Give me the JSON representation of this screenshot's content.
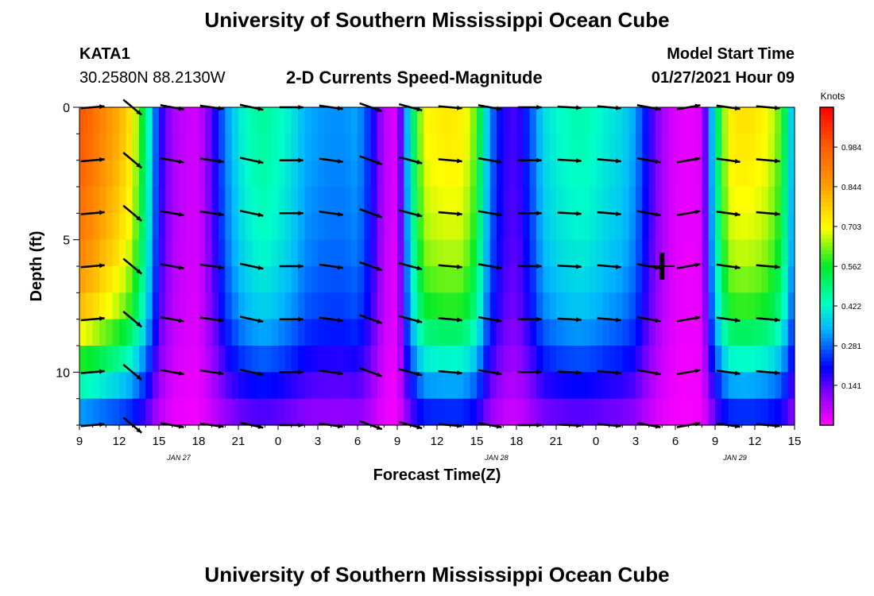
{
  "header": {
    "title": "University of Southern Mississippi Ocean Cube",
    "station_id": "KATA1",
    "station_coords": "30.2580N 88.2130W",
    "chart_title": "2-D Currents Speed-Magnitude",
    "model_label": "Model Start Time",
    "model_time": "01/27/2021 Hour 09"
  },
  "footer": {
    "title": "University of Southern Mississippi Ocean Cube"
  },
  "chart_data": {
    "type": "heatmap",
    "title": "2-D Currents Speed-Magnitude",
    "xlabel": "Forecast Time(Z)",
    "ylabel": "Depth (ft)",
    "x_tick_labels": [
      "9",
      "12",
      "15",
      "18",
      "21",
      "0",
      "3",
      "6",
      "9",
      "12",
      "15",
      "18",
      "21",
      "0",
      "3",
      "6",
      "9",
      "12",
      "15"
    ],
    "date_labels": [
      {
        "text": "JAN 27",
        "tick_index": 2.5
      },
      {
        "text": "JAN 28",
        "tick_index": 10.5
      },
      {
        "text": "JAN 29",
        "tick_index": 16.5
      }
    ],
    "y_range": [
      0,
      12
    ],
    "y_ticks": [
      0,
      5,
      10
    ],
    "colorbar": {
      "unit": "Knots",
      "range": [
        0.0,
        1.125
      ],
      "ticks": [
        0.141,
        0.281,
        0.422,
        0.562,
        0.703,
        0.844,
        0.984
      ]
    },
    "speed_profile_hours": [
      0,
      1,
      2,
      3,
      4,
      5,
      6,
      7,
      8,
      9,
      10,
      11,
      12,
      13,
      14,
      15,
      16,
      17,
      18,
      19,
      20,
      21,
      22,
      23,
      24,
      25,
      26,
      27,
      28,
      29,
      30,
      31,
      32,
      33,
      34,
      35,
      36,
      37,
      38,
      39,
      40,
      41,
      42,
      43,
      44,
      45,
      46,
      47,
      48,
      49,
      50,
      51,
      52,
      53,
      54
    ],
    "speed_profile_knots": [
      1.0,
      0.95,
      0.88,
      0.82,
      0.72,
      0.5,
      0.2,
      0.08,
      0.05,
      0.04,
      0.15,
      0.3,
      0.4,
      0.45,
      0.47,
      0.44,
      0.4,
      0.34,
      0.32,
      0.31,
      0.31,
      0.33,
      0.22,
      0.06,
      0.03,
      0.45,
      0.7,
      0.72,
      0.73,
      0.72,
      0.6,
      0.3,
      0.18,
      0.15,
      0.25,
      0.38,
      0.42,
      0.44,
      0.45,
      0.43,
      0.4,
      0.38,
      0.32,
      0.18,
      0.08,
      0.03,
      0.02,
      0.03,
      0.45,
      0.72,
      0.74,
      0.73,
      0.7,
      0.6,
      0.3
    ],
    "depth_ft": [
      0,
      1,
      2,
      3,
      4,
      5,
      6,
      7,
      8,
      9,
      10,
      11,
      12
    ],
    "depth_factor": [
      1.0,
      1.0,
      0.99,
      0.97,
      0.95,
      0.93,
      0.9,
      0.85,
      0.8,
      0.7,
      0.58,
      0.45,
      0.32
    ],
    "arrow_depths_ft": [
      0,
      2,
      4,
      6,
      8,
      10,
      12
    ],
    "arrow_hours": [
      1,
      4,
      7,
      10,
      13,
      16,
      19,
      22,
      25,
      28,
      31,
      34,
      37,
      40,
      43,
      46,
      49,
      52
    ],
    "arrow_angles_deg": [
      5,
      -40,
      -10,
      -8,
      -12,
      0,
      -8,
      -20,
      -15,
      -5,
      -10,
      0,
      -3,
      -5,
      -10,
      10,
      -8,
      -5
    ],
    "highlight_marker": {
      "hour": 44,
      "depth_ft": 6
    }
  }
}
